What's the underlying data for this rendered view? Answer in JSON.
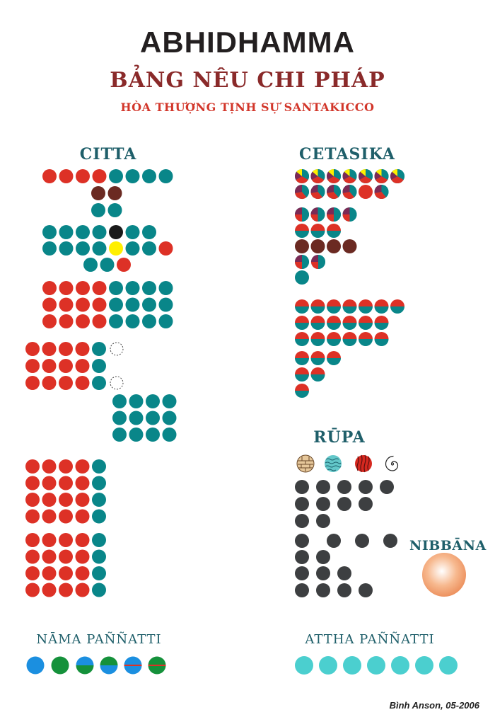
{
  "header": {
    "title": "ABHIDHAMMA",
    "subtitle": "BẢNG NÊU CHI PHÁP",
    "author": "HÒA THƯỢNG TỊNH SỰ SANTAKICCO"
  },
  "sections": {
    "citta": "CITTA",
    "cetasika": "CETASIKA",
    "rupa": "RŪPA",
    "nibbana": "NIBBĀNA",
    "nama_pannatti": "NĀMA PAÑÑATTI",
    "attha_pannatti": "ATTHA PAÑÑATTI"
  },
  "credit": "Bình Anson, 05-2006",
  "colors": {
    "red": "#dd3126",
    "teal": "#098689",
    "maroon": "#6b2a22",
    "black": "#1a1a1a",
    "yellow": "#ffef00",
    "dark_gray": "#3d3f41",
    "light_cyan": "#4bcfcf",
    "blue": "#1b8fe0",
    "green": "#15913b",
    "purple": "#7b2a55",
    "title_dark": "#231f20",
    "subtitle_red": "#8a2a2a",
    "author_red": "#d2362a",
    "label_teal": "#1f5f6a"
  },
  "icons": [
    "earth-element-icon",
    "water-element-icon",
    "fire-element-icon",
    "air-element-icon",
    "nibbana-sphere-icon"
  ]
}
